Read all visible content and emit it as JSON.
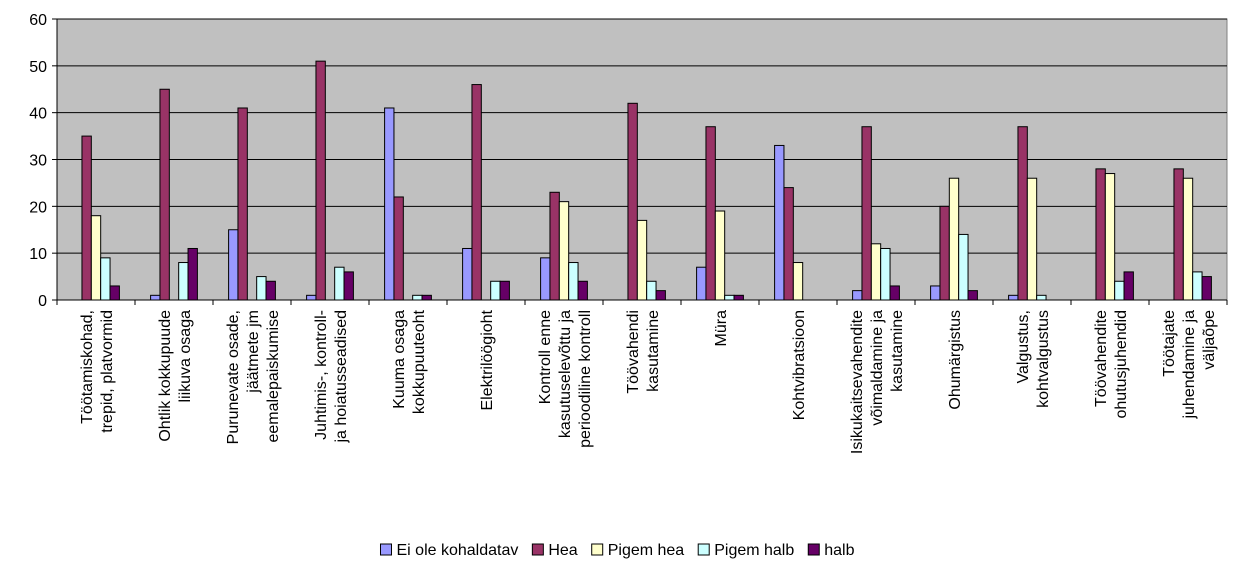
{
  "chart_data": {
    "type": "bar",
    "categories": [
      [
        "Töötamiskohad,",
        "trepid, platvormid"
      ],
      [
        "Ohtlik kokkupuude",
        "liikuva osaga"
      ],
      [
        "Purunevate osade,",
        "jäätmete jm",
        "eemalepaiskumise"
      ],
      [
        "Juhtimis-, kontroll-",
        "ja hoiatusseadised"
      ],
      [
        "Kuuma osaga",
        "kokkupuuteoht"
      ],
      [
        "Elektrilöögioht"
      ],
      [
        "Kontroll enne",
        "kasutuselevõttu ja",
        "perioodiline kontroll"
      ],
      [
        "Töövahendi",
        "kasutamine"
      ],
      [
        "Müra"
      ],
      [
        "Kohtvibratsioon"
      ],
      [
        "Isikukaitsevahendite",
        "võimaldamine ja",
        "kasutamine"
      ],
      [
        "Ohumärgistus"
      ],
      [
        "Valgustus,",
        "kohtvalgustus"
      ],
      [
        "Töövahendite",
        "ohutusjuhendid"
      ],
      [
        "Töötajate",
        "juhendamine ja",
        "väljaõpe"
      ]
    ],
    "series": [
      {
        "name": "Ei ole kohaldatav",
        "color": "#9999ff",
        "values": [
          0,
          1,
          15,
          1,
          41,
          11,
          9,
          0,
          7,
          33,
          2,
          3,
          1,
          0,
          0
        ]
      },
      {
        "name": "Hea",
        "color": "#993366",
        "values": [
          35,
          45,
          41,
          51,
          22,
          46,
          23,
          42,
          37,
          24,
          37,
          20,
          37,
          28,
          28
        ]
      },
      {
        "name": "Pigem hea",
        "color": "#ffffcc",
        "values": [
          18,
          0,
          0,
          0,
          0,
          0,
          21,
          17,
          19,
          8,
          12,
          26,
          26,
          27,
          26
        ]
      },
      {
        "name": "Pigem halb",
        "color": "#ccffff",
        "values": [
          9,
          8,
          5,
          7,
          1,
          4,
          8,
          4,
          1,
          0,
          11,
          14,
          1,
          4,
          6
        ]
      },
      {
        "name": "halb",
        "color": "#660066",
        "values": [
          3,
          11,
          4,
          6,
          1,
          4,
          4,
          2,
          1,
          0,
          3,
          2,
          0,
          6,
          5
        ]
      }
    ],
    "ylim": [
      0,
      60
    ],
    "yticks": [
      0,
      10,
      20,
      30,
      40,
      50,
      60
    ],
    "grid": true,
    "plot_background": "#c0c0c0",
    "legend": "bottom"
  }
}
